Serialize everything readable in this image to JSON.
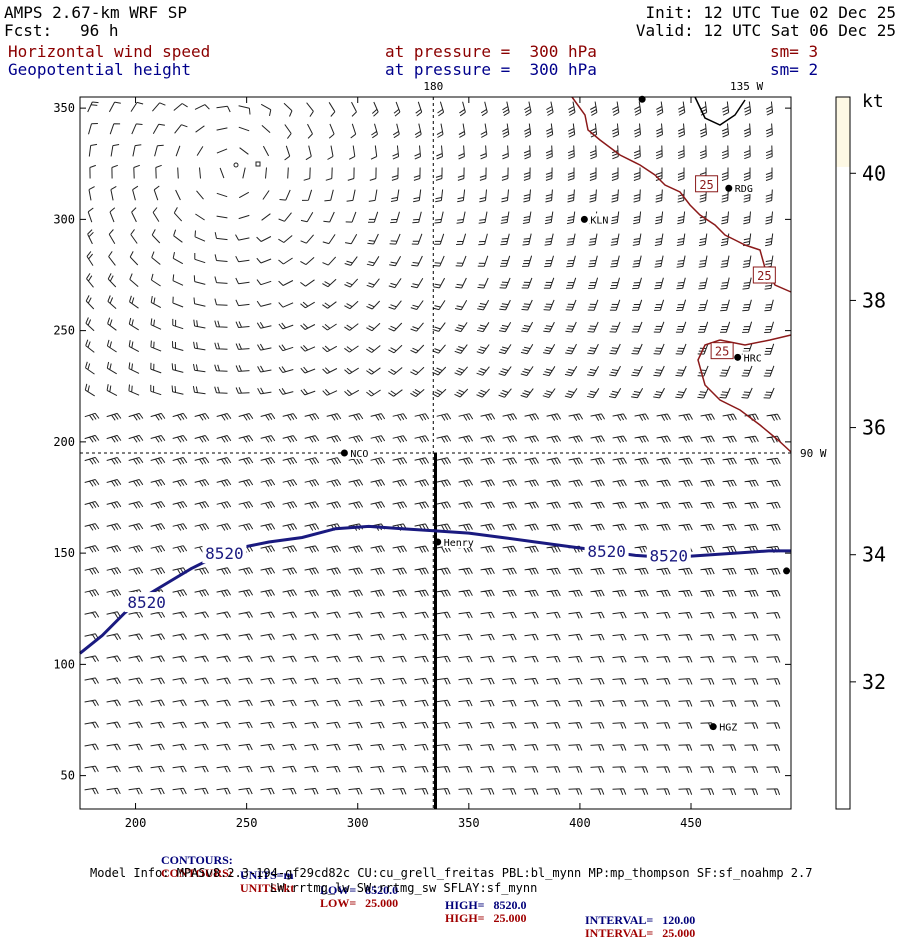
{
  "header": {
    "model": "AMPS 2.67-km WRF SP",
    "fcst_label": "Fcst:",
    "fcst_value": "96 h",
    "init": "Init: 12 UTC Tue 02 Dec 25",
    "valid": "Valid: 12 UTC Sat 06 Dec 25",
    "field1": "Horizontal wind speed",
    "field1_level": "at pressure =  300 hPa",
    "field1_sm": "sm= 3",
    "field2": "Geopotential height",
    "field2_level": "at pressure =  300 hPa",
    "field2_sm": "sm= 2"
  },
  "chart_data": {
    "type": "wind-barb map with contour",
    "x_range": [
      175,
      495
    ],
    "y_range": [
      35,
      355
    ],
    "x_ticks": [
      200,
      250,
      300,
      350,
      400,
      450
    ],
    "y_ticks": [
      50,
      100,
      150,
      200,
      250,
      300,
      350
    ],
    "meridian_labels": [
      {
        "text": "180",
        "x": 334
      },
      {
        "text": "135 W",
        "x": 475
      }
    ],
    "parallel_label": {
      "text": "90 W",
      "y": 195
    },
    "ref_lines": {
      "vertical_x": 334,
      "horizontal_y": 195
    },
    "cross_section": {
      "x": 335,
      "y_from": 35,
      "y_to": 195
    },
    "colorbar": {
      "unit": "kt",
      "min": 30,
      "max": 41.2,
      "ticks": [
        32,
        34,
        36,
        38,
        40
      ],
      "shaded_from": 40.1,
      "shade_color": "#fdf8e4"
    },
    "contour": {
      "level": "8520",
      "color": "#1a1a80",
      "points": [
        [
          175,
          105
        ],
        [
          185,
          113
        ],
        [
          195,
          123
        ],
        [
          205,
          131
        ],
        [
          215,
          137
        ],
        [
          225,
          143
        ],
        [
          235,
          148
        ],
        [
          245,
          152
        ],
        [
          260,
          155
        ],
        [
          275,
          157
        ],
        [
          290,
          161
        ],
        [
          305,
          162
        ],
        [
          320,
          161
        ],
        [
          335,
          160
        ],
        [
          350,
          159
        ],
        [
          365,
          157
        ],
        [
          380,
          155
        ],
        [
          395,
          153
        ],
        [
          410,
          151
        ],
        [
          425,
          149
        ],
        [
          440,
          148
        ],
        [
          455,
          149
        ],
        [
          470,
          150
        ],
        [
          485,
          151
        ],
        [
          495,
          151
        ]
      ],
      "labels": [
        {
          "text": "8520",
          "x": 205,
          "y": 128
        },
        {
          "text": "8520",
          "x": 240,
          "y": 150
        },
        {
          "text": "8520",
          "x": 412,
          "y": 151
        },
        {
          "text": "8520",
          "x": 440,
          "y": 149
        }
      ]
    },
    "stations": [
      {
        "name": "NCO",
        "x": 294,
        "y": 195
      },
      {
        "name": "Henry",
        "x": 336,
        "y": 155
      },
      {
        "name": "KLN",
        "x": 402,
        "y": 300
      },
      {
        "name": "RDG",
        "x": 467,
        "y": 314
      },
      {
        "name": "HRC",
        "x": 471,
        "y": 238
      },
      {
        "name": "HGZ",
        "x": 460,
        "y": 72
      },
      {
        "name": "",
        "x": 428,
        "y": 354
      },
      {
        "name": "",
        "x": 493,
        "y": 142
      }
    ],
    "isotach_labels": [
      {
        "text": "25",
        "x": 457,
        "y": 316
      },
      {
        "text": "25",
        "x": 483,
        "y": 275
      },
      {
        "text": "25",
        "x": 464,
        "y": 241
      }
    ]
  },
  "footer": {
    "row1": {
      "label": "CONTOURS:",
      "units": "UNITS=m",
      "low": "LOW=   8520.0",
      "high": "HIGH=   8520.0",
      "interval": "INTERVAL=   120.00"
    },
    "row2": {
      "label": "CONTOURS:",
      "units": "UNITS=kt",
      "low": "LOW=   25.000",
      "high": "HIGH=   25.000",
      "interval": "INTERVAL=   25.000"
    },
    "model_info": "Model Info: MPASv8.2.3-194-gf29cd82c CU:cu_grell_freitas PBL:bl_mynn MP:mp_thompson SF:sf_noahmp 2.7",
    "model_info2": "LW:rrtmg_lw SW:rrtmg_sw SFLAY:sf_mynn"
  }
}
